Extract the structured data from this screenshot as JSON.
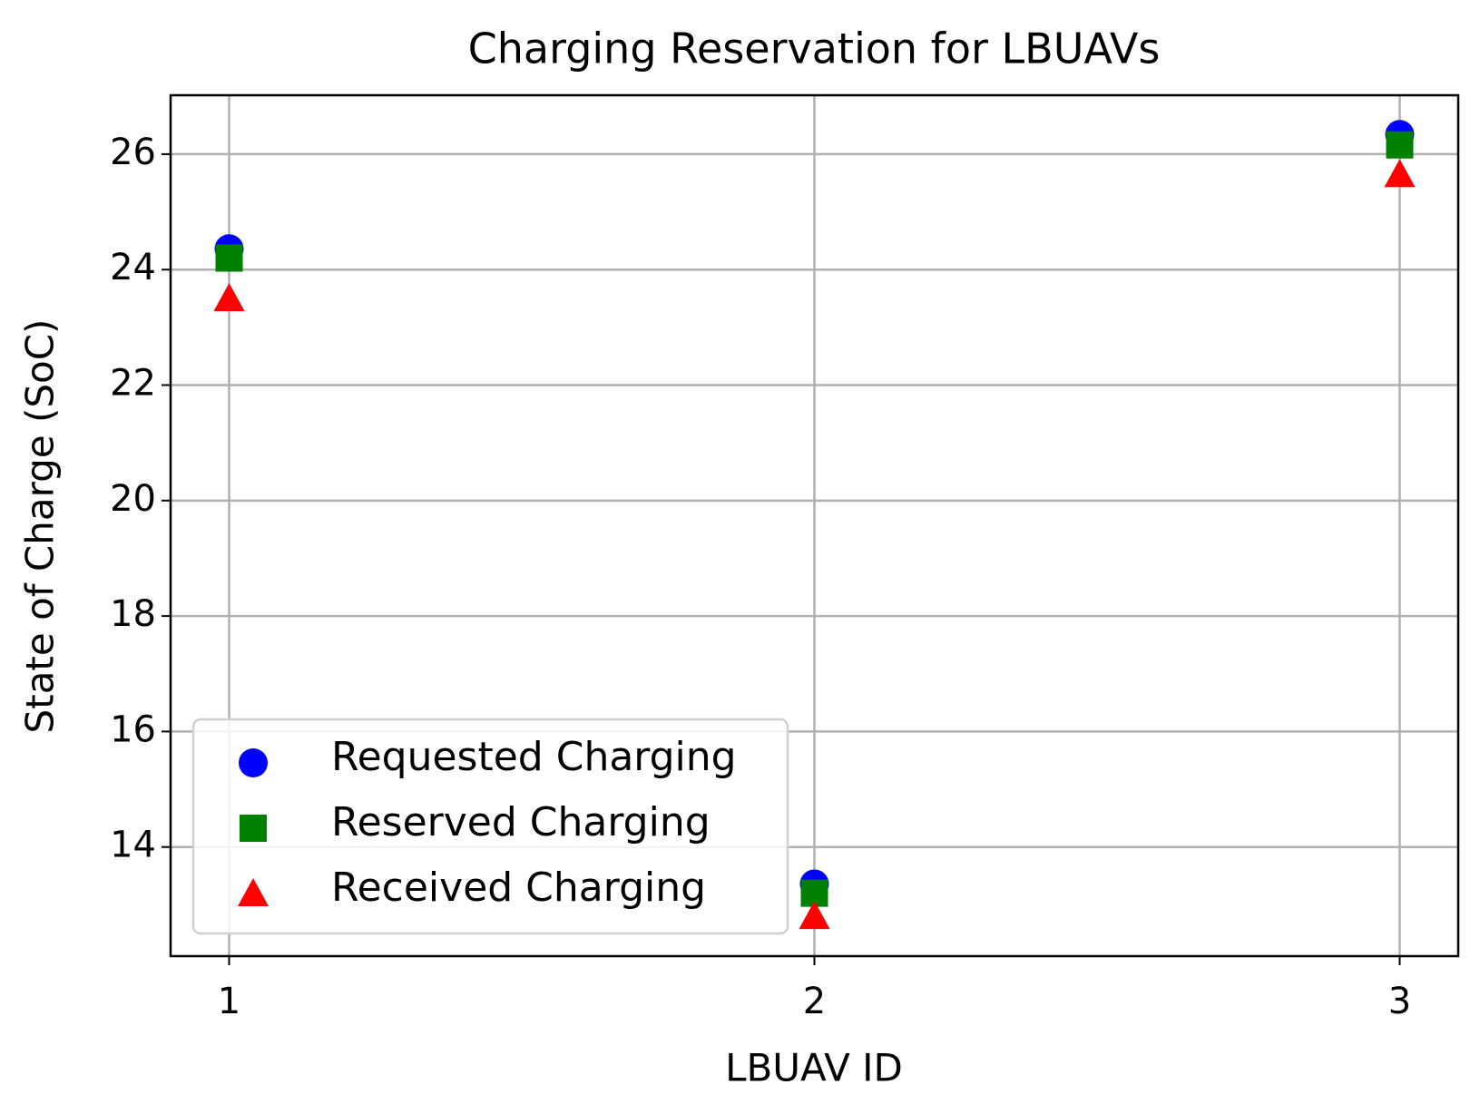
{
  "chart_data": {
    "type": "scatter",
    "title": "Charging Reservation for LBUAVs",
    "xlabel": "LBUAV ID",
    "ylabel": "State of Charge (SoC)",
    "xlim": [
      0.9,
      3.1
    ],
    "xticks": [
      1,
      2,
      3
    ],
    "ylim": [
      12.11,
      27.02
    ],
    "yticks": [
      14,
      16,
      18,
      20,
      22,
      24,
      26
    ],
    "grid": true,
    "legend": "lower left",
    "series": [
      {
        "name": "Requested Charging",
        "color": "#0000ff",
        "marker": "circle",
        "x": [
          1,
          2,
          3
        ],
        "values": [
          24.36,
          13.36,
          26.34
        ]
      },
      {
        "name": "Reserved Charging",
        "color": "#008000",
        "marker": "square",
        "x": [
          1,
          2,
          3
        ],
        "values": [
          24.2,
          13.2,
          26.16
        ]
      },
      {
        "name": "Received Charging",
        "color": "#ff0000",
        "marker": "triangle",
        "x": [
          1,
          2,
          3
        ],
        "values": [
          23.5,
          12.8,
          25.65
        ]
      }
    ]
  }
}
